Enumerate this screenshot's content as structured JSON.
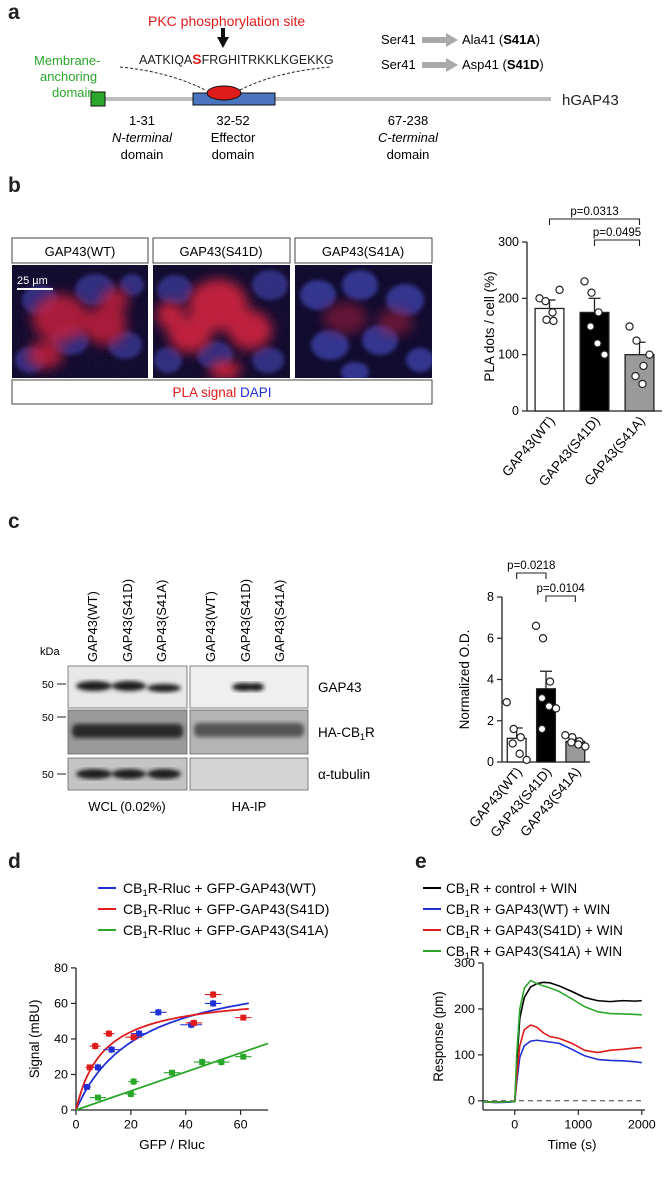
{
  "panel_labels": {
    "a": "a",
    "b": "b",
    "c": "c",
    "d": "d",
    "e": "e"
  },
  "panel_a": {
    "pkc_label": "PKC phosphorylation site",
    "sequence_pre": "AATKIQA",
    "sequence_site": "S",
    "sequence_post": "FRGHITRKKLKGEKKG",
    "mutation_1_from": "Ser41",
    "mutation_1_to": "Ala41",
    "mutation_1_code": "S41A",
    "mutation_2_from": "Ser41",
    "mutation_2_to": "Asp41",
    "mutation_2_code": "S41D",
    "membrane_label_1": "Membrane-",
    "membrane_label_2": "anchoring",
    "membrane_label_3": "domain",
    "protein_name": "hGAP43",
    "domain_1_range": "1-31",
    "domain_1_name_1": "N-terminal",
    "domain_1_name_2": "domain",
    "domain_2_range": "32-52",
    "domain_2_name_1": "Effector",
    "domain_2_name_2": "domain",
    "domain_3_range": "67-238",
    "domain_3_name_1": "C-terminal",
    "domain_3_name_2": "domain",
    "colors": {
      "membrane": "#2aa62a",
      "effector": "#4a74c0",
      "site": "#e01b1b",
      "backbone": "#bdbdbd"
    }
  },
  "panel_b": {
    "image_labels": [
      "GAP43(WT)",
      "GAP43(S41D)",
      "GAP43(S41A)"
    ],
    "scale_bar": "25 µm",
    "legend_red": "PLA signal",
    "legend_blue": "DAPI"
  },
  "panel_c": {
    "lane_labels": [
      "GAP43(WT)",
      "GAP43(S41D)",
      "GAP43(S41A)",
      "GAP43(WT)",
      "GAP43(S41D)",
      "GAP43(S41A)"
    ],
    "kda": "kDa",
    "marker": "50",
    "band_labels": [
      "GAP43",
      "HA-CB",
      "α-tubulin"
    ],
    "cb_sub": "1",
    "cb_suffix": "R",
    "group_left": "WCL (0.02%)",
    "group_right": "HA-IP"
  },
  "chart_data": [
    {
      "type": "bar",
      "panel": "b",
      "ylabel": "PLA dots / cell (%)",
      "categories": [
        "GAP43(WT)",
        "GAP43(S41D)",
        "GAP43(S41A)"
      ],
      "values": [
        182,
        175,
        100
      ],
      "errors": [
        15,
        25,
        22
      ],
      "points": [
        [
          200,
          162,
          160,
          195,
          175,
          215
        ],
        [
          230,
          210,
          175,
          150,
          120,
          100
        ],
        [
          150,
          125,
          80,
          62,
          48,
          100
        ]
      ],
      "fills": [
        "#ffffff",
        "#000000",
        "#9a9a9a"
      ],
      "ylim": [
        0,
        300
      ],
      "yticks": [
        0,
        100,
        200,
        300
      ],
      "significance": [
        {
          "a": 0,
          "b": 2,
          "label": "p=0.0313"
        },
        {
          "a": 1,
          "b": 2,
          "label": "p=0.0495"
        }
      ]
    },
    {
      "type": "bar",
      "panel": "c",
      "ylabel": "Normalized O.D.",
      "categories": [
        "GAP43(WT)",
        "GAP43(S41D)",
        "GAP43(S41A)"
      ],
      "values": [
        1.15,
        3.55,
        1.0
      ],
      "errors": [
        0.5,
        0.85,
        0.15
      ],
      "points": [
        [
          2.9,
          1.6,
          1.2,
          0.9,
          0.4,
          0.1
        ],
        [
          6.6,
          6.0,
          3.9,
          3.1,
          2.7,
          2.6,
          1.6
        ],
        [
          1.3,
          1.2,
          1.0,
          0.95,
          0.85,
          0.75
        ]
      ],
      "fills": [
        "#ffffff",
        "#000000",
        "#9a9a9a"
      ],
      "ylim": [
        0,
        8
      ],
      "yticks": [
        0,
        2,
        4,
        6,
        8
      ],
      "significance": [
        {
          "a": 0,
          "b": 1,
          "label": "p=0.0218"
        },
        {
          "a": 1,
          "b": 2,
          "label": "p=0.0104"
        }
      ]
    },
    {
      "type": "scatter",
      "panel": "d",
      "xlabel": "GFP / Rluc",
      "ylabel": "Signal (mBU)",
      "xlim": [
        0,
        70
      ],
      "ylim": [
        0,
        80
      ],
      "xticks": [
        0,
        20,
        40,
        60
      ],
      "yticks": [
        0,
        20,
        40,
        60,
        80
      ],
      "series": [
        {
          "name": "CB1R-Rluc + GFP-GAP43(WT)",
          "legend_pre": "CB",
          "legend_sub": "1",
          "legend_post": "R-Rluc + GFP-GAP43(WT)",
          "color": "#1f2fd6",
          "x": [
            4,
            8,
            13,
            23,
            30,
            42,
            50
          ],
          "y": [
            13,
            24,
            34,
            43,
            55,
            48,
            60
          ],
          "xerr": [
            1.5,
            2,
            3,
            3,
            3,
            4,
            3
          ],
          "yerr": [
            1.5,
            2,
            2,
            2,
            2,
            2,
            2
          ],
          "fit": {
            "model": "hyperbola",
            "bmax": 82,
            "kd": 23
          }
        },
        {
          "name": "CB1R-Rluc + GFP-GAP43(S41D)",
          "legend_pre": "CB",
          "legend_sub": "1",
          "legend_post": "R-Rluc + GFP-GAP43(S41D)",
          "color": "#e01b1b",
          "x": [
            5,
            7,
            12,
            21,
            43,
            50,
            61
          ],
          "y": [
            24,
            36,
            43,
            41,
            49,
            65,
            52
          ],
          "xerr": [
            1.5,
            2,
            2,
            3,
            3,
            3,
            3
          ],
          "yerr": [
            1.5,
            2,
            2,
            2,
            2,
            2,
            1.5
          ],
          "fit": {
            "model": "hyperbola",
            "bmax": 66,
            "kd": 10
          }
        },
        {
          "name": "CB1R-Rluc + GFP-GAP43(S41A)",
          "legend_pre": "CB",
          "legend_sub": "1",
          "legend_post": "R-Rluc + GFP-GAP43(S41A)",
          "color": "#2aa62a",
          "x": [
            8,
            20,
            21,
            35,
            46,
            53,
            61
          ],
          "y": [
            7,
            9,
            16,
            21,
            27,
            27,
            30
          ],
          "xerr": [
            3,
            2,
            2,
            3,
            3,
            3,
            3
          ],
          "yerr": [
            1.5,
            2,
            2,
            1.5,
            2,
            2,
            1.5
          ],
          "fit": {
            "model": "linear",
            "slope": 0.535
          }
        }
      ]
    },
    {
      "type": "line",
      "panel": "e",
      "xlabel": "Time (s)",
      "ylabel": "Response (pm)",
      "xlim": [
        -500,
        2050
      ],
      "ylim": [
        -20,
        300
      ],
      "xticks": [
        0,
        1000,
        2000
      ],
      "yticks": [
        0,
        100,
        200,
        300
      ],
      "series": [
        {
          "name": "CB1R + control + WIN",
          "legend_pre": "CB",
          "legend_sub": "1",
          "legend_post": "R + control + WIN",
          "color": "#000000",
          "x": [
            -500,
            -300,
            -100,
            0,
            30,
            80,
            150,
            250,
            350,
            450,
            550,
            700,
            900,
            1100,
            1300,
            1500,
            1700,
            1900,
            2000
          ],
          "y": [
            -2,
            -3,
            -2,
            -2,
            80,
            180,
            225,
            248,
            255,
            258,
            257,
            250,
            238,
            225,
            218,
            216,
            218,
            217,
            218
          ]
        },
        {
          "name": "CB1R + GAP43(WT) + WIN",
          "legend_pre": "CB",
          "legend_sub": "1",
          "legend_post": "R + GAP43(WT) + WIN",
          "color": "#1f2fd6",
          "x": [
            -500,
            -300,
            -100,
            0,
            30,
            80,
            150,
            250,
            350,
            450,
            550,
            700,
            900,
            1100,
            1300,
            1500,
            1700,
            1900,
            2000
          ],
          "y": [
            -2,
            -4,
            -3,
            -2,
            40,
            95,
            120,
            130,
            132,
            130,
            128,
            125,
            112,
            98,
            90,
            88,
            87,
            85,
            83
          ]
        },
        {
          "name": "CB1R + GAP43(S41D) + WIN",
          "legend_pre": "CB",
          "legend_sub": "1",
          "legend_post": "R + GAP43(S41D) + WIN",
          "color": "#e01b1b",
          "x": [
            -500,
            -300,
            -100,
            0,
            30,
            80,
            150,
            250,
            350,
            450,
            550,
            700,
            900,
            1100,
            1300,
            1500,
            1700,
            1900,
            2000
          ],
          "y": [
            -2,
            -3,
            -2,
            -1,
            50,
            120,
            155,
            165,
            160,
            148,
            140,
            136,
            125,
            110,
            105,
            110,
            112,
            115,
            116
          ]
        },
        {
          "name": "CB1R + GAP43(S41A) + WIN",
          "legend_pre": "CB",
          "legend_sub": "1",
          "legend_post": "R + GAP43(S41A) + WIN",
          "color": "#2aa62a",
          "x": [
            -500,
            -300,
            -100,
            0,
            30,
            80,
            150,
            250,
            350,
            450,
            550,
            700,
            900,
            1100,
            1300,
            1500,
            1700,
            1900,
            2000
          ],
          "y": [
            -2,
            -3,
            -2,
            -2,
            100,
            200,
            245,
            262,
            255,
            250,
            246,
            238,
            222,
            205,
            194,
            190,
            189,
            188,
            187
          ]
        }
      ]
    }
  ]
}
